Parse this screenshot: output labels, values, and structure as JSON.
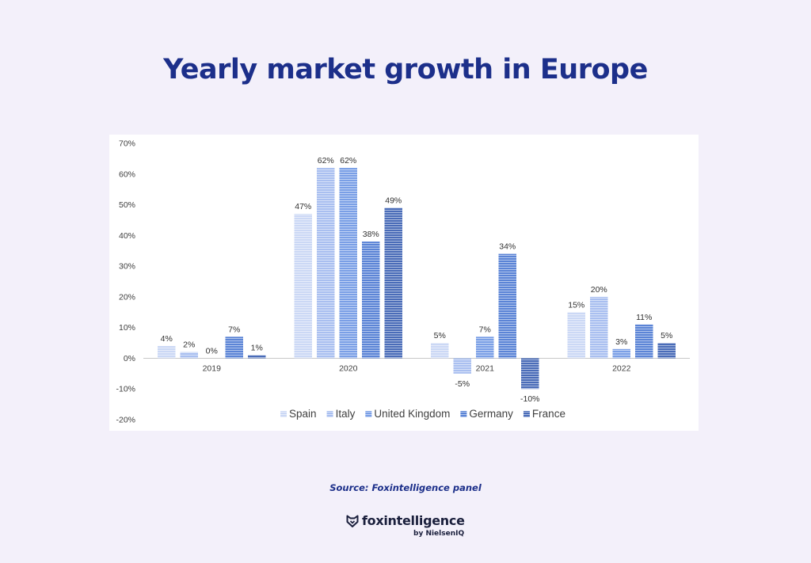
{
  "title": "Yearly market growth in Europe",
  "source": "Source: Foxintelligence panel",
  "brand": {
    "name": "foxintelligence",
    "tagline": "by NielsenIQ"
  },
  "chart_data": {
    "type": "bar",
    "categories": [
      "2019",
      "2020",
      "2021",
      "2022"
    ],
    "series": [
      {
        "name": "Spain",
        "values": [
          4,
          47,
          5,
          15
        ],
        "labels": [
          "4%",
          "47%",
          "5%",
          "15%"
        ],
        "color": "#cbd8f5"
      },
      {
        "name": "Italy",
        "values": [
          2,
          62,
          -5,
          20
        ],
        "labels": [
          "2%",
          "62%",
          "-5%",
          "20%"
        ],
        "color": "#a9bff0"
      },
      {
        "name": "United Kingdom",
        "values": [
          0,
          62,
          7,
          3
        ],
        "labels": [
          "0%",
          "62%",
          "7%",
          "3%"
        ],
        "color": "#7a9fe6"
      },
      {
        "name": "Germany",
        "values": [
          7,
          38,
          34,
          11
        ],
        "labels": [
          "7%",
          "38%",
          "34%",
          "11%"
        ],
        "color": "#5b84d6"
      },
      {
        "name": "France",
        "values": [
          1,
          49,
          -10,
          5
        ],
        "labels": [
          "1%",
          "49%",
          "-10%",
          "5%"
        ],
        "color": "#4a6cb8"
      }
    ],
    "yticks": [
      "70%",
      "60%",
      "50%",
      "40%",
      "30%",
      "20%",
      "10%",
      "0%",
      "-10%",
      "-20%"
    ],
    "ylim": [
      -20,
      70
    ],
    "legend_position": "bottom",
    "grid": false
  }
}
